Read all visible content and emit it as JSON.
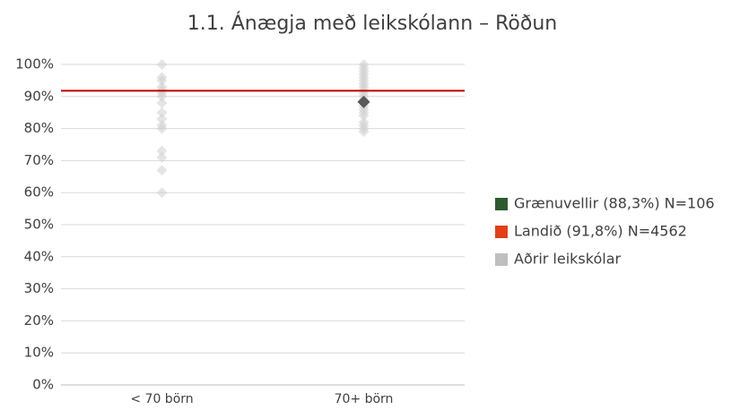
{
  "chart_data": {
    "type": "strip",
    "title": "1.1. Ánægja með leikskólann – Röðun",
    "categories": [
      "< 70 börn",
      "70+ börn"
    ],
    "ylim": [
      0,
      100
    ],
    "yticks": [
      {
        "value": 0,
        "label": "0%"
      },
      {
        "value": 10,
        "label": "10%"
      },
      {
        "value": 20,
        "label": "20%"
      },
      {
        "value": 30,
        "label": "30%"
      },
      {
        "value": 40,
        "label": "40%"
      },
      {
        "value": 50,
        "label": "50%"
      },
      {
        "value": 60,
        "label": "60%"
      },
      {
        "value": 70,
        "label": "70%"
      },
      {
        "value": 80,
        "label": "80%"
      },
      {
        "value": 90,
        "label": "90%"
      },
      {
        "value": 100,
        "label": "100%"
      }
    ],
    "grid": true,
    "legend": "right",
    "series": [
      {
        "name": "Grænuvellir (88,3%) N=106",
        "color": "#2e5a2e",
        "marker_color": "#595959",
        "style": "points",
        "values": [
          [],
          [
            88.3
          ]
        ]
      },
      {
        "name": "Landið (91,8%) N=4562",
        "color": "#e0401a",
        "marker_color": "#c00000",
        "style": "hline",
        "values": [
          91.8
        ]
      },
      {
        "name": "Aðrir leikskólar",
        "color": "#bfbfbf",
        "marker_color": "#d0d0d0",
        "style": "points",
        "values": [
          [
            100,
            96,
            95,
            93,
            92,
            91,
            90,
            88,
            85,
            83,
            81,
            80,
            73,
            71,
            67,
            60
          ],
          [
            100,
            99,
            98,
            97,
            96,
            95,
            94,
            93,
            92,
            91,
            90,
            89,
            87,
            86,
            85,
            84,
            82,
            81,
            80,
            79
          ]
        ]
      }
    ]
  }
}
